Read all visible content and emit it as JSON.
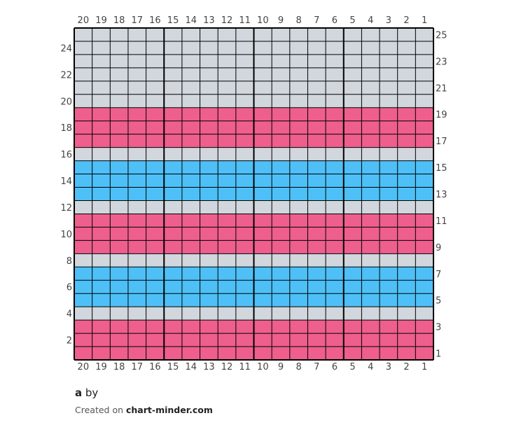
{
  "pattern": {
    "title": "a",
    "by_word": "by",
    "author": "",
    "created_prefix": "Created on",
    "site": "chart-minder.com"
  },
  "colors": {
    "gray": "#d1d7dd",
    "pink": "#ee5f8e",
    "blue": "#4ec0f7",
    "line": "#000000"
  },
  "chart_data": {
    "type": "grid",
    "columns": 20,
    "rows": 25,
    "column_numbering": "right-to-left",
    "row_numbering": "bottom-to-top",
    "row_labels_left": [
      2,
      4,
      6,
      8,
      10,
      12,
      14,
      16,
      18,
      20,
      22,
      24
    ],
    "row_labels_right": [
      1,
      3,
      5,
      7,
      9,
      11,
      13,
      15,
      17,
      19,
      21,
      23,
      25
    ],
    "major_grid_every_columns": 5,
    "row_colors": [
      "pink",
      "pink",
      "pink",
      "gray",
      "blue",
      "blue",
      "blue",
      "gray",
      "pink",
      "pink",
      "pink",
      "gray",
      "blue",
      "blue",
      "blue",
      "gray",
      "pink",
      "pink",
      "pink",
      "gray",
      "gray",
      "gray",
      "gray",
      "gray",
      "gray"
    ]
  }
}
